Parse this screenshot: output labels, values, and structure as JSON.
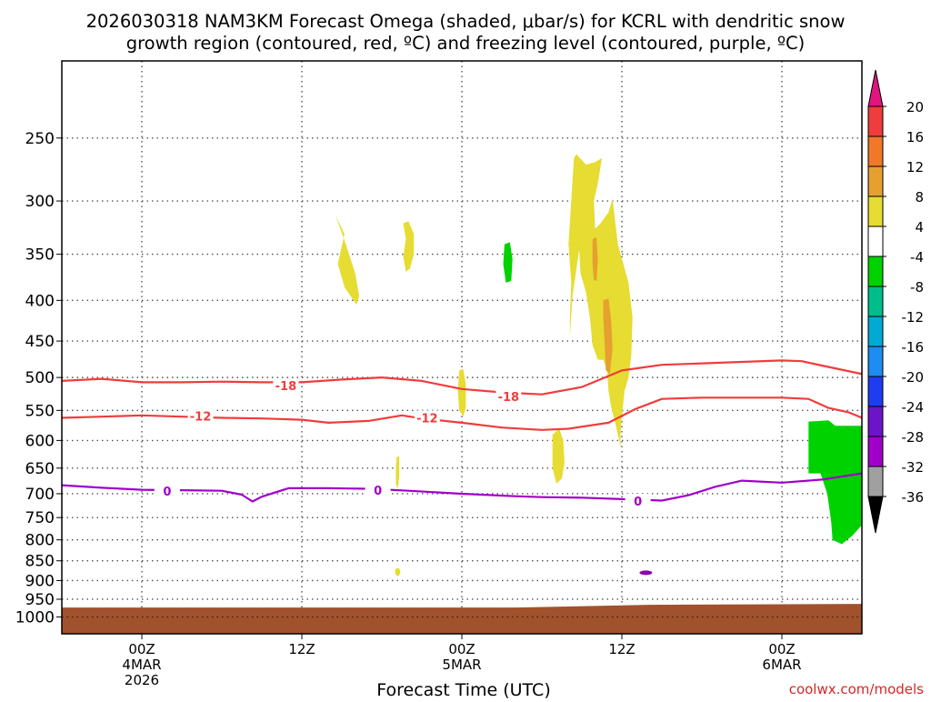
{
  "title": {
    "line1": "2026030318 NAM3KM Forecast Omega (shaded, μbar/s) for KCRL with dendritic snow",
    "line2": "growth region (contoured, red, ºC) and freezing level (contoured, purple, ºC)"
  },
  "watermark": "coolwx.com/models",
  "chart_data": {
    "type": "time-height cross section (filled contour + line contours)",
    "xlabel": "Forecast Time (UTC)",
    "x_range_hours": [
      -6,
      54
    ],
    "x_ticks": [
      {
        "hour": 0,
        "lines": [
          "00Z",
          "4MAR",
          "2026"
        ]
      },
      {
        "hour": 12,
        "lines": [
          "12Z"
        ]
      },
      {
        "hour": 24,
        "lines": [
          "00Z",
          "5MAR"
        ]
      },
      {
        "hour": 36,
        "lines": [
          "12Z"
        ]
      },
      {
        "hour": 48,
        "lines": [
          "00Z",
          "6MAR"
        ]
      }
    ],
    "ylabel": "",
    "y_scale": "log",
    "y_range_hpa": [
      1050,
      200
    ],
    "y_ticks": [
      250,
      300,
      350,
      400,
      450,
      500,
      550,
      600,
      650,
      700,
      750,
      800,
      850,
      900,
      950,
      1000
    ],
    "grid": true,
    "colorbar": {
      "ticks": [
        20,
        16,
        12,
        8,
        4,
        -4,
        -8,
        -12,
        -16,
        -20,
        -24,
        -28,
        -32,
        -36
      ],
      "bins": [
        {
          "range": ">20",
          "color": "#e0157e"
        },
        {
          "range": "16 to 20",
          "color": "#f03c3c"
        },
        {
          "range": "12 to 16",
          "color": "#f07828"
        },
        {
          "range": "8 to 12",
          "color": "#e6a030"
        },
        {
          "range": "4 to 8",
          "color": "#e6dc32"
        },
        {
          "range": "-4 to 4",
          "color": "#ffffff"
        },
        {
          "range": "-8 to -4",
          "color": "#00d200"
        },
        {
          "range": "-12 to -8",
          "color": "#00be8c"
        },
        {
          "range": "-16 to -12",
          "color": "#00aad2"
        },
        {
          "range": "-20 to -16",
          "color": "#1e8cf0"
        },
        {
          "range": "-24 to -20",
          "color": "#1e3cf0"
        },
        {
          "range": "-28 to -24",
          "color": "#6e14c8"
        },
        {
          "range": "-32 to -28",
          "color": "#a000c8"
        },
        {
          "range": "-36 to -32",
          "color": "#a0a0a0"
        },
        {
          "range": "<-36",
          "color": "#000000"
        }
      ]
    },
    "contours": [
      {
        "level": "-18",
        "color": "#f03c3c",
        "label_points": [
          {
            "hour": 10.8,
            "p": 512
          },
          {
            "hour": 27.5,
            "p": 528
          }
        ],
        "points": [
          [
            -6,
            505
          ],
          [
            -3,
            502
          ],
          [
            0,
            507
          ],
          [
            3,
            507
          ],
          [
            6,
            506
          ],
          [
            9,
            507
          ],
          [
            12,
            507
          ],
          [
            15,
            503
          ],
          [
            18,
            500
          ],
          [
            21,
            505
          ],
          [
            24,
            517
          ],
          [
            27,
            522
          ],
          [
            30,
            525
          ],
          [
            33,
            514
          ],
          [
            36,
            490
          ],
          [
            39,
            482
          ],
          [
            42,
            480
          ],
          [
            45,
            478
          ],
          [
            48,
            476
          ],
          [
            49.5,
            477
          ],
          [
            51,
            483
          ],
          [
            54,
            495
          ]
        ]
      },
      {
        "level": "-12",
        "color": "#f03c3c",
        "label_points": [
          {
            "hour": 4.4,
            "p": 559
          },
          {
            "hour": 21.4,
            "p": 562
          }
        ],
        "points": [
          [
            -6,
            562
          ],
          [
            -3,
            560
          ],
          [
            0,
            558
          ],
          [
            3,
            560
          ],
          [
            6,
            562
          ],
          [
            9,
            563
          ],
          [
            12,
            565
          ],
          [
            14,
            570
          ],
          [
            17,
            567
          ],
          [
            19.5,
            558
          ],
          [
            21,
            563
          ],
          [
            24,
            570
          ],
          [
            27,
            578
          ],
          [
            30,
            582
          ],
          [
            32,
            580
          ],
          [
            35,
            570
          ],
          [
            37,
            548
          ],
          [
            39,
            532
          ],
          [
            42,
            530
          ],
          [
            45,
            530
          ],
          [
            48,
            530
          ],
          [
            50,
            532
          ],
          [
            51.5,
            546
          ],
          [
            53,
            553
          ],
          [
            54,
            562
          ]
        ]
      },
      {
        "level": "0",
        "color": "#a000c8",
        "label_points": [
          {
            "hour": 1.9,
            "p": 695
          },
          {
            "hour": 17.7,
            "p": 693
          },
          {
            "hour": 37.2,
            "p": 715
          }
        ],
        "points": [
          [
            -6,
            683
          ],
          [
            -3,
            688
          ],
          [
            0,
            692
          ],
          [
            3,
            693
          ],
          [
            6,
            694
          ],
          [
            7.5,
            702
          ],
          [
            8.3,
            716
          ],
          [
            9,
            706
          ],
          [
            11,
            689
          ],
          [
            14,
            689
          ],
          [
            17,
            690
          ],
          [
            20,
            694
          ],
          [
            24,
            700
          ],
          [
            28,
            705
          ],
          [
            30,
            707
          ],
          [
            33,
            708
          ],
          [
            36,
            711
          ],
          [
            39,
            714
          ],
          [
            41,
            703
          ],
          [
            43,
            686
          ],
          [
            45,
            674
          ],
          [
            48,
            678
          ],
          [
            51,
            672
          ],
          [
            54,
            660
          ]
        ]
      }
    ],
    "omega_features": [
      {
        "sign": "upward/positive",
        "bin": "4 to 8",
        "near_hour": 15.5,
        "p_range": [
          315,
          405
        ]
      },
      {
        "sign": "upward/positive",
        "bin": "4 to 8",
        "near_hour": 20.2,
        "p_range": [
          318,
          370
        ]
      },
      {
        "sign": "downward/negative",
        "bin": "-8 to -4",
        "near_hour": 27.5,
        "p_range": [
          340,
          380
        ]
      },
      {
        "sign": "upward/positive",
        "bin": "4 to 8",
        "near_hour": 33.5,
        "p_range": [
          265,
          600
        ]
      },
      {
        "sign": "upward/positive",
        "bin": "8 to 12",
        "near_hour": 34.0,
        "p_range": [
          335,
          380
        ]
      },
      {
        "sign": "upward/positive",
        "bin": "8 to 12",
        "near_hour": 35.0,
        "p_range": [
          400,
          500
        ]
      },
      {
        "sign": "upward/positive",
        "bin": "4 to 8",
        "near_hour": 24.0,
        "p_range": [
          490,
          560
        ]
      },
      {
        "sign": "upward/positive",
        "bin": "4 to 8",
        "near_hour": 31.3,
        "p_range": [
          580,
          680
        ]
      },
      {
        "sign": "upward/positive",
        "bin": "4 to 8",
        "near_hour": 19.2,
        "p_range": [
          630,
          690
        ]
      },
      {
        "sign": "downward/negative",
        "bin": "-8 to -4",
        "near_hour": 52,
        "p_range": [
          570,
          810
        ]
      }
    ],
    "terrain_surface_hpa": 968
  }
}
